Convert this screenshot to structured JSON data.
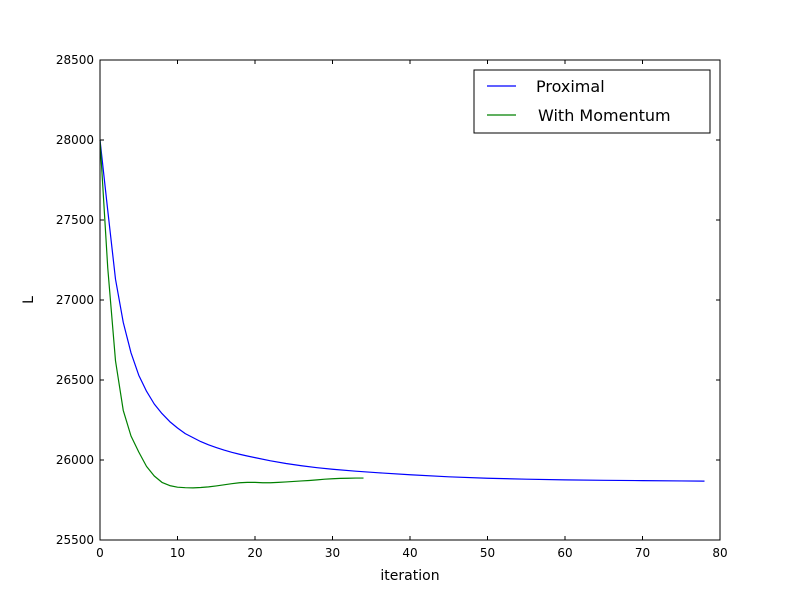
{
  "chart_data": {
    "type": "line",
    "title": "",
    "xlabel": "iteration",
    "ylabel": "L",
    "xlim": [
      0,
      80
    ],
    "ylim": [
      25500,
      28500
    ],
    "xticks": [
      "0",
      "10",
      "20",
      "30",
      "40",
      "50",
      "60",
      "70",
      "80"
    ],
    "yticks": [
      "25500",
      "26000",
      "26500",
      "27000",
      "27500",
      "28000",
      "28500"
    ],
    "grid": false,
    "legend_position": "top-right",
    "series": [
      {
        "name": "Proximal",
        "color": "#0000ff",
        "x": [
          0,
          1,
          2,
          3,
          4,
          5,
          6,
          7,
          8,
          9,
          10,
          11,
          12,
          13,
          14,
          15,
          16,
          17,
          18,
          19,
          20,
          22,
          24,
          26,
          28,
          30,
          33,
          36,
          40,
          45,
          50,
          55,
          60,
          65,
          70,
          75,
          78
        ],
        "y": [
          28000,
          27560,
          27130,
          26860,
          26670,
          26530,
          26430,
          26350,
          26290,
          26240,
          26200,
          26165,
          26140,
          26115,
          26095,
          26078,
          26062,
          26048,
          26036,
          26025,
          26015,
          25995,
          25978,
          25964,
          25952,
          25942,
          25930,
          25920,
          25908,
          25895,
          25886,
          25880,
          25876,
          25873,
          25871,
          25869,
          25868
        ]
      },
      {
        "name": "With Momentum",
        "color": "#008000",
        "x": [
          0,
          1,
          2,
          3,
          4,
          5,
          6,
          7,
          8,
          9,
          10,
          11,
          12,
          13,
          14,
          15,
          16,
          17,
          18,
          19,
          20,
          21,
          22,
          23,
          24,
          25,
          26,
          27,
          28,
          29,
          30,
          31,
          32,
          33,
          34
        ],
        "y": [
          28000,
          27200,
          26620,
          26310,
          26150,
          26050,
          25960,
          25900,
          25860,
          25840,
          25830,
          25827,
          25826,
          25828,
          25832,
          25838,
          25845,
          25852,
          25858,
          25860,
          25860,
          25858,
          25858,
          25860,
          25863,
          25866,
          25869,
          25872,
          25876,
          25880,
          25883,
          25885,
          25886,
          25887,
          25887
        ]
      }
    ]
  }
}
